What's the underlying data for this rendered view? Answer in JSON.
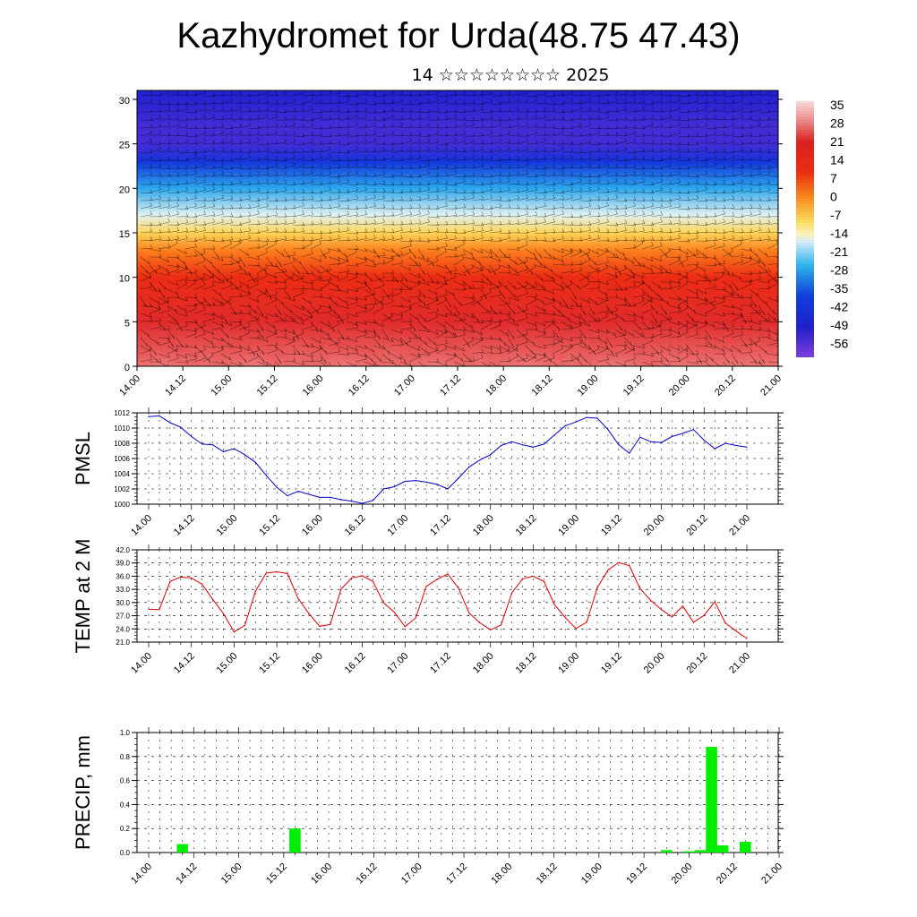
{
  "header": {
    "title": "Kazhydromet for Urda(48.75 47.43)",
    "subtitle": "14 ☆☆☆☆☆☆☆☆ 2025"
  },
  "colors": {
    "pmsl_line": "#0000cc",
    "temp_line": "#dd0000",
    "precip_bar": "#00ee00"
  },
  "chart_data": [
    {
      "type": "heatmap",
      "name": "cross-section",
      "x_ticks": [
        "14.00",
        "14.12",
        "15.00",
        "15.12",
        "16.00",
        "16.12",
        "17.00",
        "17.12",
        "18.00",
        "18.12",
        "19.00",
        "19.12",
        "20.00",
        "20.12",
        "21.00"
      ],
      "y_ticks": [
        "0",
        "5",
        "10",
        "15",
        "20",
        "25",
        "30"
      ],
      "ylim": [
        0,
        31
      ],
      "colorbar": {
        "labels": [
          "35",
          "28",
          "21",
          "14",
          "7",
          "0",
          "-7",
          "-14",
          "-21",
          "-28",
          "-35",
          "-42",
          "-49",
          "-56"
        ],
        "range": [
          -63,
          42
        ]
      },
      "profile": [
        {
          "level": 0,
          "value": 32
        },
        {
          "level": 5,
          "value": 26
        },
        {
          "level": 10,
          "value": 16
        },
        {
          "level": 13,
          "value": 4
        },
        {
          "level": 15,
          "value": -6
        },
        {
          "level": 17,
          "value": -15
        },
        {
          "level": 20,
          "value": -27
        },
        {
          "level": 23,
          "value": -42
        },
        {
          "level": 25,
          "value": -55
        },
        {
          "level": 27,
          "value": -55
        },
        {
          "level": 31,
          "value": -50
        }
      ],
      "warm_cells_x": [
        14.25,
        15.25,
        16.25,
        17.25,
        18.25,
        19.25
      ],
      "has_wind_barbs": true
    },
    {
      "type": "line",
      "name": "pmsl",
      "ylabel": "PMSL",
      "ylim": [
        1000,
        1012
      ],
      "y_ticks": [
        "1000",
        "1002",
        "1004",
        "1006",
        "1008",
        "1010",
        "1012"
      ],
      "x_ticks": [
        "14.00",
        "14.12",
        "15.00",
        "15.12",
        "16.00",
        "16.12",
        "17.00",
        "17.12",
        "18.00",
        "18.12",
        "19.00",
        "19.12",
        "20.00",
        "20.12",
        "21.00"
      ],
      "x_start": 14.0,
      "x_step_hours": 3,
      "values": [
        1011.5,
        1011.6,
        1010.7,
        1010.1,
        1008.9,
        1007.9,
        1007.8,
        1006.9,
        1007.3,
        1006.5,
        1005.5,
        1003.8,
        1002.2,
        1001.1,
        1001.7,
        1001.3,
        1000.9,
        1000.9,
        1000.6,
        1000.4,
        1000.1,
        1000.5,
        1002.0,
        1002.3,
        1003.0,
        1003.1,
        1002.9,
        1002.6,
        1002.0,
        1003.4,
        1004.9,
        1005.8,
        1006.5,
        1007.7,
        1008.2,
        1007.8,
        1007.5,
        1007.9,
        1009.1,
        1010.3,
        1010.8,
        1011.4,
        1011.3,
        1009.8,
        1007.8,
        1006.7,
        1008.8,
        1008.2,
        1008.1,
        1008.9,
        1009.3,
        1009.8,
        1008.4,
        1007.3,
        1008.0,
        1007.7,
        1007.5
      ]
    },
    {
      "type": "line",
      "name": "temp",
      "ylabel": "TEMP at 2 M",
      "ylim": [
        21,
        42
      ],
      "y_ticks": [
        "21.0",
        "24.0",
        "27.0",
        "30.0",
        "33.0",
        "36.0",
        "39.0",
        "42.0"
      ],
      "x_ticks": [
        "14.00",
        "14.12",
        "15.00",
        "15.12",
        "16.00",
        "16.12",
        "17.00",
        "17.12",
        "18.00",
        "18.12",
        "19.00",
        "19.12",
        "20.00",
        "20.12",
        "21.00"
      ],
      "x_start": 14.0,
      "x_step_hours": 3,
      "values": [
        28.5,
        28.4,
        34.8,
        35.8,
        35.6,
        34.2,
        30.7,
        27.5,
        23.3,
        24.8,
        32.6,
        36.7,
        37.0,
        36.6,
        30.9,
        27.5,
        24.6,
        25.0,
        33.0,
        35.6,
        36.1,
        34.8,
        29.9,
        27.8,
        24.5,
        26.5,
        33.7,
        35.3,
        36.5,
        33.3,
        27.6,
        25.4,
        23.8,
        24.9,
        32.2,
        35.4,
        36.0,
        34.8,
        29.5,
        26.6,
        24.1,
        25.5,
        33.4,
        37.4,
        39.1,
        38.4,
        33.2,
        30.5,
        28.4,
        26.7,
        29.2,
        25.5,
        27.1,
        30.2,
        25.3,
        23.5,
        21.8
      ]
    },
    {
      "type": "bar",
      "name": "precip",
      "ylabel": "PRECIP, mm",
      "ylim": [
        0,
        1.0
      ],
      "y_ticks": [
        "0.0",
        "0.2",
        "0.4",
        "0.6",
        "0.8",
        "1.0"
      ],
      "x_ticks": [
        "14.00",
        "14.12",
        "15.00",
        "15.12",
        "16.00",
        "16.12",
        "17.00",
        "17.12",
        "18.00",
        "18.12",
        "19.00",
        "19.12",
        "20.00",
        "20.12",
        "21.00"
      ],
      "bars": [
        {
          "time": 14.375,
          "value": 0.07
        },
        {
          "time": 15.625,
          "value": 0.2
        },
        {
          "time": 19.75,
          "value": 0.02
        },
        {
          "time": 20.0,
          "value": 0.01
        },
        {
          "time": 20.125,
          "value": 0.02
        },
        {
          "time": 20.25,
          "value": 0.88
        },
        {
          "time": 20.375,
          "value": 0.06
        },
        {
          "time": 20.625,
          "value": 0.09
        }
      ]
    }
  ]
}
